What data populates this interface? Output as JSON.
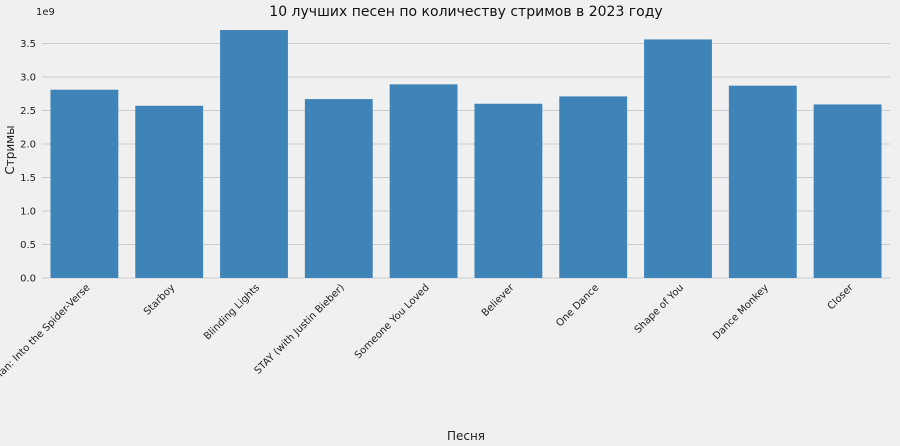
{
  "chart_data": {
    "type": "bar",
    "title": "10 лучших песен по количеству стримов в 2023 году",
    "xlabel": "Песня",
    "ylabel": "Стримы",
    "y_multiplier_label": "1e9",
    "categories": [
      "Sunflower - Spider-Man: Into the Spider-Verse",
      "Starboy",
      "Blinding Lights",
      "STAY (with Justin Bieber)",
      "Someone You Loved",
      "Believer",
      "One Dance",
      "Shape of You",
      "Dance Monkey",
      "Closer"
    ],
    "values": [
      2.81,
      2.57,
      3.7,
      2.67,
      2.89,
      2.6,
      2.71,
      3.56,
      2.87,
      2.59
    ],
    "ylim": [
      0,
      3.85
    ],
    "yticks": [
      "0.0",
      "0.5",
      "1.0",
      "1.5",
      "2.0",
      "2.5",
      "3.0",
      "3.5"
    ],
    "bar_color": "#3f84b8",
    "background_color": "#f0f0f0",
    "grid": true
  }
}
